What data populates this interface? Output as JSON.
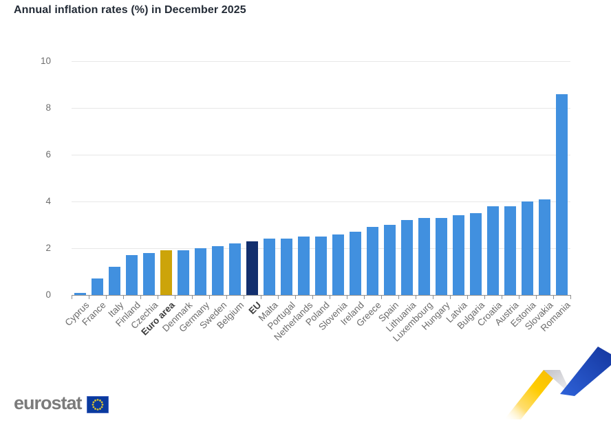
{
  "title": "Annual inflation rates (%) in December 2025",
  "chart_data": {
    "type": "bar",
    "title": "Annual inflation rates (%) in December 2025",
    "categories": [
      "Cyprus",
      "France",
      "Italy",
      "Finland",
      "Czechia",
      "Euro area",
      "Denmark",
      "Germany",
      "Sweden",
      "Belgium",
      "EU",
      "Malta",
      "Portugal",
      "Netherlands",
      "Poland",
      "Slovenia",
      "Ireland",
      "Greece",
      "Spain",
      "Lithuania",
      "Luxembourg",
      "Hungary",
      "Latvia",
      "Bulgaria",
      "Croatia",
      "Austria",
      "Estonia",
      "Slovakia",
      "Romania"
    ],
    "values": [
      0.1,
      0.7,
      1.2,
      1.7,
      1.8,
      1.9,
      1.9,
      2.0,
      2.1,
      2.2,
      2.3,
      2.4,
      2.4,
      2.5,
      2.5,
      2.6,
      2.7,
      2.9,
      3.0,
      3.2,
      3.3,
      3.3,
      3.4,
      3.5,
      3.8,
      3.8,
      4.0,
      4.1,
      8.6
    ],
    "xlabel": "",
    "ylabel": "",
    "ylim": [
      0,
      10
    ],
    "yticks": [
      0,
      2,
      4,
      6,
      8,
      10
    ],
    "grid": true,
    "legend_position": "none",
    "bar_color_default": "#4190DF",
    "bar_color_overrides": {
      "Euro area": "#CCA40A",
      "EU": "#122F6E"
    },
    "bold_categories": [
      "Euro area",
      "EU"
    ]
  },
  "footer": {
    "logo_text": "eurostat"
  },
  "icons": {
    "eu_flag": "eu-flag-icon",
    "ribbon": "trend-ribbon-decoration"
  },
  "colors": {
    "grid": "#e7e7e7",
    "axis": "#8f8f8f",
    "axis_label": "#6e6e6e",
    "title_text": "#232b36",
    "logo_gray": "#7b7b7b",
    "flag_blue": "#0a3a9e",
    "flag_stars": "#d9c32f",
    "ribbon_yellow": "#ffcc00",
    "ribbon_blue": "#1c49c0",
    "ribbon_gray": "#d4d4d8"
  }
}
